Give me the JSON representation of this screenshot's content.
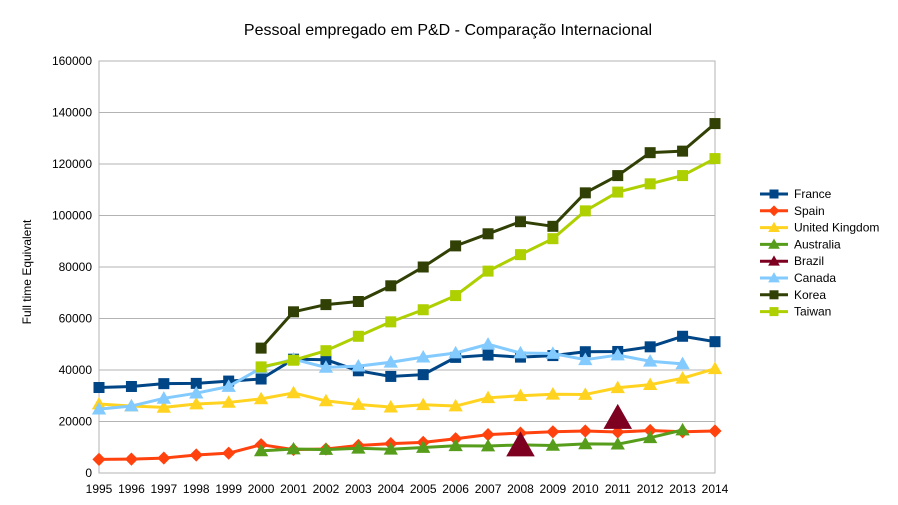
{
  "chart_data": {
    "type": "line",
    "title": "Pessoal empregado em P&D - Comparação Internacional",
    "xlabel": "",
    "ylabel": "Full time Equivalent",
    "ylim": [
      0,
      160000
    ],
    "yticks": [
      0,
      20000,
      40000,
      60000,
      80000,
      100000,
      120000,
      140000,
      160000
    ],
    "categories": [
      "1995",
      "1996",
      "1997",
      "1998",
      "1999",
      "2000",
      "2001",
      "2002",
      "2003",
      "2004",
      "2005",
      "2006",
      "2007",
      "2008",
      "2009",
      "2010",
      "2011",
      "2012",
      "2013",
      "2014"
    ],
    "grid": "horizontal",
    "legend_position": "right",
    "series": [
      {
        "name": "France",
        "color": "#004586",
        "marker": "square",
        "values": [
          33200,
          33600,
          34700,
          34800,
          35700,
          36500,
          44200,
          44000,
          39700,
          37500,
          38200,
          44900,
          45800,
          45000,
          45600,
          47100,
          47200,
          49000,
          53100,
          51000
        ]
      },
      {
        "name": "Spain",
        "color": "#ff420e",
        "marker": "diamond",
        "values": [
          5300,
          5400,
          5800,
          7000,
          7700,
          11000,
          9100,
          9300,
          10700,
          11400,
          11900,
          13300,
          14900,
          15500,
          16000,
          16300,
          15900,
          16500,
          16000,
          16300
        ]
      },
      {
        "name": "United Kingdom",
        "color": "#ffd320",
        "marker": "triangle",
        "values": [
          26800,
          26000,
          25500,
          26800,
          27400,
          28800,
          31100,
          28000,
          26600,
          25600,
          26500,
          26000,
          29200,
          30000,
          30600,
          30500,
          33100,
          34300,
          36800,
          40500
        ]
      },
      {
        "name": "Australia",
        "color": "#579d1c",
        "marker": "triangle",
        "values": [
          null,
          null,
          null,
          null,
          null,
          8600,
          9300,
          9100,
          9600,
          9200,
          9900,
          10600,
          10500,
          10900,
          10700,
          11300,
          11200,
          13700,
          16700,
          null
        ]
      },
      {
        "name": "Brazil",
        "color": "#7e0021",
        "marker": "triangle",
        "values": [
          null,
          null,
          null,
          null,
          null,
          null,
          null,
          null,
          null,
          null,
          null,
          null,
          null,
          10600,
          null,
          null,
          21300,
          null,
          null,
          null
        ]
      },
      {
        "name": "Canada",
        "color": "#83caff",
        "marker": "triangle",
        "values": [
          24800,
          26000,
          29000,
          31000,
          33600,
          40800,
          44200,
          41000,
          41500,
          43000,
          45000,
          46600,
          50000,
          46600,
          46400,
          44000,
          45800,
          43400,
          42400,
          null
        ]
      },
      {
        "name": "Korea",
        "color": "#314004",
        "marker": "square",
        "values": [
          null,
          null,
          null,
          null,
          null,
          48500,
          62600,
          65400,
          66600,
          72700,
          80000,
          88200,
          92900,
          97600,
          95800,
          108800,
          115500,
          124400,
          125000,
          135700
        ]
      },
      {
        "name": "Taiwan",
        "color": "#aecf00",
        "marker": "square",
        "values": [
          null,
          null,
          null,
          null,
          null,
          41200,
          43800,
          47500,
          53100,
          58700,
          63400,
          68900,
          78400,
          84800,
          91000,
          101800,
          109100,
          112300,
          115500,
          122100
        ]
      }
    ]
  }
}
